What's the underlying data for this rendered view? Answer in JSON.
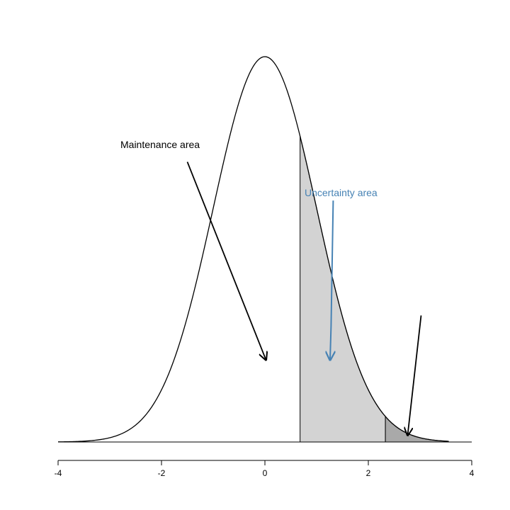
{
  "chart_data": {
    "type": "area",
    "title": "",
    "xlabel": "",
    "ylabel": "",
    "xlim": [
      -4,
      4
    ],
    "x_ticks": [
      -4,
      -2,
      0,
      2,
      4
    ],
    "x_tick_labels": [
      "-4",
      "-2",
      "0",
      "2",
      "4"
    ],
    "grid": false,
    "curve": {
      "distribution": "standard normal density",
      "mean": 0,
      "sd": 1,
      "x_range": [
        -4,
        3.55
      ],
      "stroke": "#000000"
    },
    "shaded_regions": [
      {
        "x_from": 0.68,
        "x_to": 2.33,
        "fill": "#d3d3d3"
      },
      {
        "x_from": 2.33,
        "x_to": 3.55,
        "fill": "#a9a9a9"
      }
    ],
    "annotations": [
      {
        "text": "Maintenance area",
        "color": "#000000",
        "arrow_from": [
          -1.5,
          0.29
        ],
        "arrow_to": [
          0.02,
          0.085
        ]
      },
      {
        "text": "Uncertainty area",
        "color": "#4682b4",
        "arrow_from": [
          1.32,
          0.25
        ],
        "arrow_to": [
          1.26,
          0.085
        ],
        "arrow_mid": [
          1.28,
          0.12
        ]
      },
      {
        "text": "",
        "color": "#000000",
        "arrow_from": [
          3.02,
          0.131
        ],
        "arrow_to": [
          2.76,
          0.007
        ]
      }
    ]
  }
}
